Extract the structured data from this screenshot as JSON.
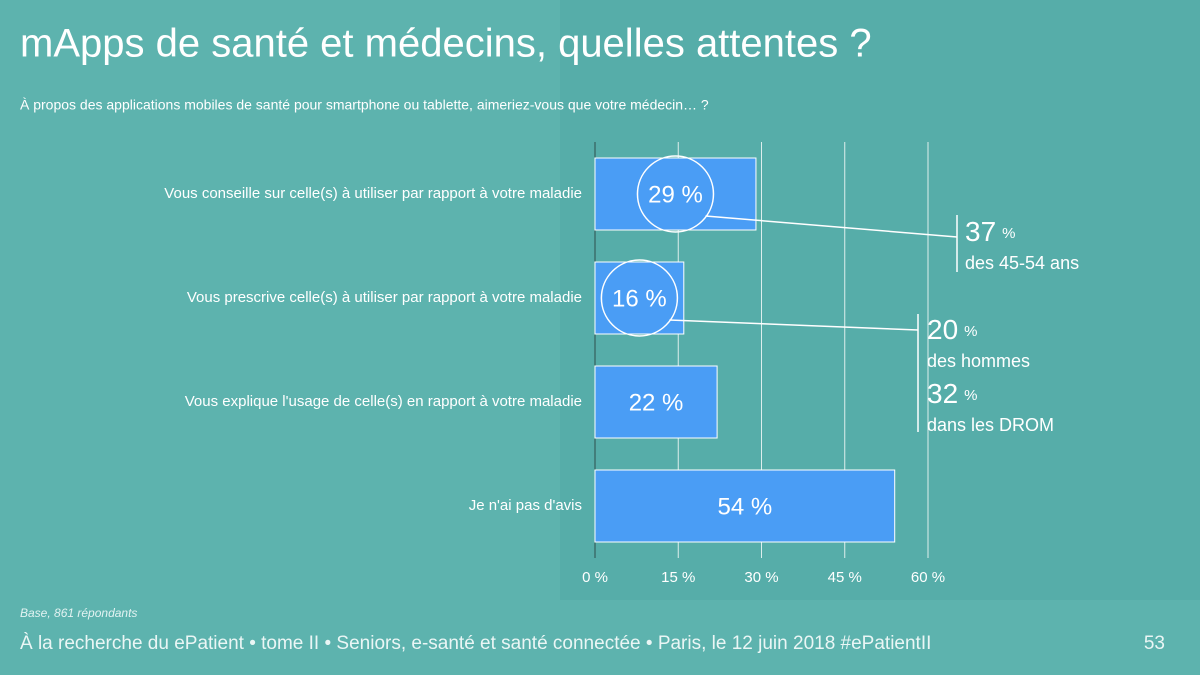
{
  "chart_data": {
    "type": "bar",
    "orientation": "horizontal",
    "title": "mApps de santé et médecins, quelles attentes ?",
    "subtitle": "À propos des applications mobiles de santé pour smartphone ou tablette, aimeriez-vous que votre médecin… ?",
    "categories": [
      "Vous conseille sur celle(s) à utiliser par rapport à votre maladie",
      "Vous prescrive celle(s) à utiliser par rapport à votre maladie",
      "Vous explique l'usage de celle(s) en rapport à votre maladie",
      "Je n'ai pas d'avis"
    ],
    "values": [
      29,
      16,
      22,
      54
    ],
    "value_labels": [
      "29 %",
      "16 %",
      "22 %",
      "54 %"
    ],
    "color": "#4a9df5",
    "xlim": [
      0,
      60
    ],
    "xticks": [
      {
        "value": 0,
        "label": "0 %"
      },
      {
        "value": 15,
        "label": "15 %"
      },
      {
        "value": 30,
        "label": "30 %"
      },
      {
        "value": 45,
        "label": "45 %"
      },
      {
        "value": 60,
        "label": "60 %"
      }
    ],
    "grid": true,
    "annotations": [
      {
        "value": 37,
        "unit": "%",
        "text": "des 45-54 ans"
      },
      {
        "value": 20,
        "unit": "%",
        "text": "des hommes"
      },
      {
        "value": 32,
        "unit": "%",
        "text": "dans les DROM"
      }
    ],
    "note": "Base, 861 répondants"
  },
  "footer": {
    "text": "À la recherche du ePatient • tome II • Seniors, e-santé et santé connectée • Paris, le 12 juin 2018 #ePatientII",
    "page": "53"
  }
}
